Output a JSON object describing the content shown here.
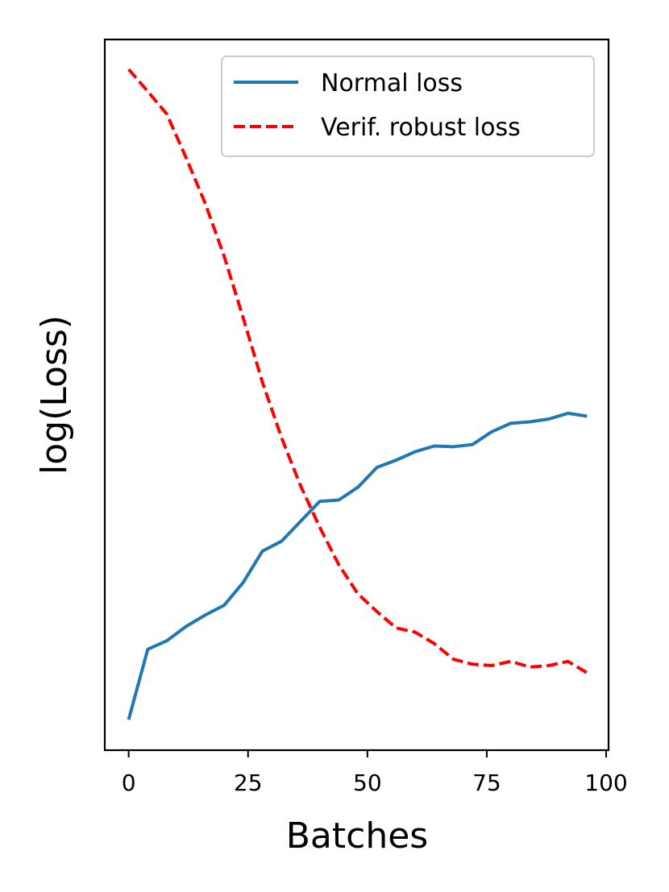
{
  "chart_data": {
    "type": "line",
    "title": "",
    "xlabel": "Batches",
    "ylabel": "log(Loss)",
    "xlim": [
      -5,
      100.5
    ],
    "ylim": [
      0,
      1
    ],
    "xticks": [
      0,
      25,
      50,
      75,
      100
    ],
    "yticks": [],
    "grid": false,
    "legend": {
      "placement": "top-right"
    },
    "series": [
      {
        "name": "Normal loss",
        "color": "#1f77b4",
        "linestyle": "solid",
        "x": [
          0,
          4,
          8,
          12,
          16,
          20,
          24,
          28,
          32,
          36,
          40,
          44,
          48,
          52,
          56,
          60,
          64,
          68,
          72,
          76,
          80,
          84,
          88,
          92,
          96
        ],
        "y": [
          0.043,
          0.142,
          0.154,
          0.174,
          0.19,
          0.204,
          0.236,
          0.28,
          0.294,
          0.322,
          0.35,
          0.352,
          0.37,
          0.398,
          0.408,
          0.42,
          0.428,
          0.427,
          0.43,
          0.448,
          0.46,
          0.462,
          0.466,
          0.474,
          0.47
        ]
      },
      {
        "name": "Verif. robust loss",
        "color": "#ff0000",
        "linestyle": "dashed",
        "x": [
          0,
          4,
          8,
          12,
          16,
          20,
          24,
          28,
          32,
          36,
          40,
          44,
          48,
          52,
          56,
          60,
          64,
          68,
          72,
          76,
          80,
          84,
          88,
          92,
          96
        ],
        "y": [
          0.958,
          0.927,
          0.895,
          0.834,
          0.77,
          0.695,
          0.608,
          0.518,
          0.44,
          0.372,
          0.314,
          0.261,
          0.22,
          0.195,
          0.172,
          0.166,
          0.15,
          0.128,
          0.121,
          0.119,
          0.125,
          0.117,
          0.119,
          0.125,
          0.109
        ]
      }
    ]
  }
}
